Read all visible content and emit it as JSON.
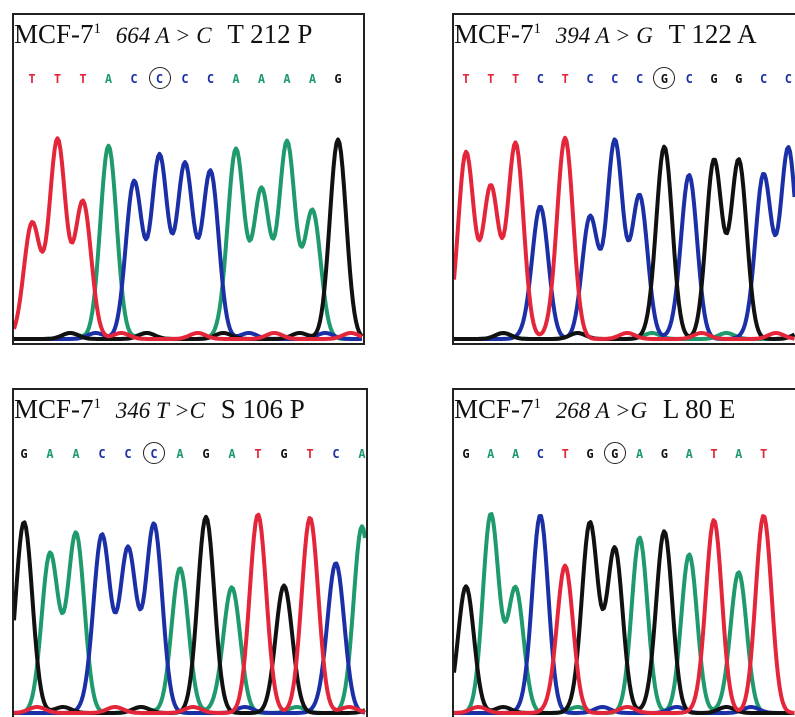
{
  "colors": {
    "A": "#1f9a6c",
    "C": "#1b2fa6",
    "G": "#111111",
    "T": "#e3263a"
  },
  "panels": [
    {
      "line": "MCF-7",
      "sup": "1",
      "mutation": "664 A > C",
      "aa_change": "T 212 P",
      "sequence": [
        "T",
        "T",
        "T",
        "A",
        "C",
        "C",
        "C",
        "C",
        "A",
        "A",
        "A",
        "A",
        "G"
      ],
      "circled": 5
    },
    {
      "line": "MCF-7",
      "sup": "1",
      "mutation": "394 A > G",
      "aa_change": "T 122 A",
      "sequence": [
        "T",
        "T",
        "T",
        "C",
        "T",
        "C",
        "C",
        "C",
        "G",
        "C",
        "G",
        "G",
        "C",
        "C"
      ],
      "circled": 8
    },
    {
      "line": "MCF-7",
      "sup": "1",
      "mutation": "346 T >C",
      "aa_change": "S 106 P",
      "sequence": [
        "G",
        "A",
        "A",
        "C",
        "C",
        "C",
        "A",
        "G",
        "A",
        "T",
        "G",
        "T",
        "C",
        "A"
      ],
      "circled": 5
    },
    {
      "line": "MCF-7",
      "sup": "1",
      "mutation": "268 A >G",
      "aa_change": "L 80 E",
      "sequence": [
        "G",
        "A",
        "A",
        "C",
        "T",
        "G",
        "G",
        "A",
        "G",
        "A",
        "T",
        "A",
        "T"
      ],
      "circled": 6
    }
  ]
}
